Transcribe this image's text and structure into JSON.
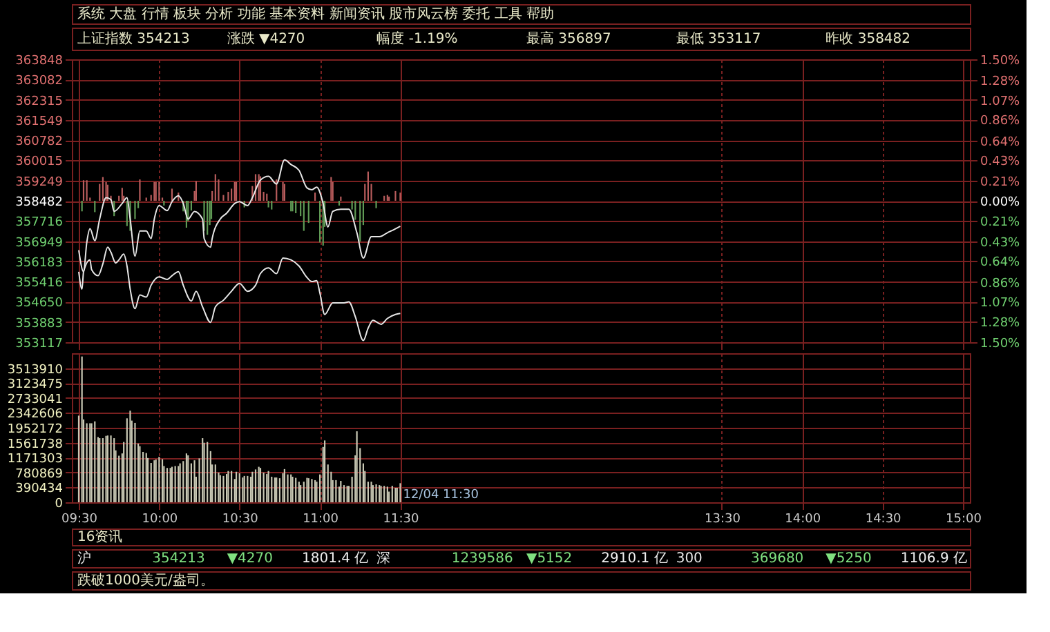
{
  "chart_data": [
    {
      "type": "line",
      "annotations": [
        "系统 大盘 行情 板块 分析 功能 基本资料 新闻资讯 股市风云榜 委托 工具 帮助",
        "上证指数 354213",
        "涨跌 ▼4270",
        "幅度 -1.19%",
        "最高 356897",
        "最低 353117",
        "昨收 358482"
      ],
      "series": [
        {
          "type": "line",
          "color": "#e6e6e6",
          "x": [
            9.5,
            9.53,
            9.55,
            9.57,
            9.6,
            9.63,
            9.67,
            9.7,
            9.72,
            9.77,
            9.8,
            9.82,
            9.85,
            9.88,
            9.92,
            9.95,
            9.97,
            10,
            10.05,
            10.08,
            10.12,
            10.15,
            10.18,
            10.22,
            10.27,
            10.28,
            10.32,
            10.33,
            10.38,
            10.42,
            10.47,
            10.5,
            10.55,
            10.58,
            10.63,
            10.68,
            10.73,
            10.78,
            10.82,
            10.87,
            10.92,
            10.95,
            10.98,
            11.02,
            11.05,
            11.08,
            11.13,
            11.18,
            11.23,
            11.27,
            11.32,
            11.37,
            11.42,
            11.47,
            11.5
          ],
          "values": [
            356610,
            355790,
            356900,
            357420,
            356970,
            357790,
            358600,
            358530,
            358080,
            358380,
            358600,
            357790,
            356380,
            357340,
            357340,
            357050,
            357790,
            358300,
            358110,
            358450,
            358670,
            358380,
            357790,
            358080,
            357790,
            357050,
            356720,
            357050,
            357790,
            358010,
            358380,
            358450,
            358300,
            358600,
            359270,
            359410,
            359120,
            360030,
            359860,
            359640,
            358970,
            358900,
            359000,
            358380,
            357490,
            358080,
            358160,
            358160,
            357270,
            356310,
            357120,
            357120,
            357270,
            357420,
            357520
          ]
        },
        {
          "type": "line",
          "color": "#e6e6e6",
          "x": [
            9.5,
            9.52,
            9.53,
            9.57,
            9.58,
            9.62,
            9.65,
            9.68,
            9.7,
            9.73,
            9.75,
            9.78,
            9.8,
            9.82,
            9.85,
            9.88,
            9.92,
            9.95,
            10,
            10.05,
            10.08,
            10.12,
            10.15,
            10.2,
            10.23,
            10.27,
            10.32,
            10.35,
            10.4,
            10.45,
            10.5,
            10.55,
            10.6,
            10.63,
            10.68,
            10.73,
            10.77,
            10.82,
            10.87,
            10.92,
            10.95,
            10.98,
            11,
            11.03,
            11.08,
            11.15,
            11.18,
            11.22,
            11.27,
            11.3,
            11.33,
            11.38,
            11.42,
            11.47,
            11.5
          ],
          "values": [
            355790,
            355130,
            355790,
            356240,
            355870,
            355640,
            356090,
            356720,
            356530,
            356120,
            356240,
            356460,
            356010,
            355130,
            354390,
            354910,
            354830,
            355280,
            355600,
            355500,
            355640,
            355790,
            355280,
            354680,
            355050,
            354460,
            353870,
            354460,
            354710,
            355050,
            355350,
            355050,
            355280,
            355720,
            355940,
            355720,
            356310,
            356240,
            356010,
            355570,
            355420,
            355450,
            354980,
            354170,
            354610,
            354610,
            354650,
            354090,
            353180,
            353650,
            353950,
            353800,
            354020,
            354170,
            354210
          ]
        },
        {
          "type": "bar",
          "color": "#b85c5c",
          "x": [
            9.53,
            9.55,
            9.57,
            9.63,
            9.65,
            9.67,
            9.68,
            9.7,
            9.75,
            9.77,
            9.78,
            9.88,
            9.92,
            9.95,
            9.97,
            9.98,
            10,
            10.02,
            10.08,
            10.12,
            10.22,
            10.23,
            10.33,
            10.35,
            10.37,
            10.4,
            10.43,
            10.45,
            10.47,
            10.48,
            10.58,
            10.6,
            10.62,
            10.63,
            10.65,
            10.67,
            10.73,
            10.77,
            10.78,
            10.97,
            11.07,
            11.08,
            11.13,
            11.28,
            11.3,
            11.32,
            11.4,
            11.42,
            11.43,
            11.47,
            11.5
          ],
          "base": [
            358482,
            358482,
            358482,
            358482,
            358482,
            358482,
            358482,
            358482,
            358482,
            358482,
            358482,
            358482,
            358482,
            358482,
            358482,
            358482,
            358482,
            358482,
            358482,
            358482,
            358482,
            358482,
            358482,
            358482,
            358482,
            358482,
            358482,
            358482,
            358482,
            358482,
            358482,
            358482,
            358482,
            358482,
            358482,
            358482,
            358482,
            358482,
            358482,
            358482,
            358482,
            358482,
            358482,
            358482,
            358482,
            358482,
            358482,
            358482,
            358482,
            358482,
            358482
          ],
          "values": [
            780,
            780,
            120,
            640,
            900,
            710,
            610,
            190,
            190,
            490,
            190,
            810,
            120,
            220,
            710,
            710,
            710,
            120,
            460,
            310,
            370,
            750,
            370,
            1010,
            810,
            220,
            340,
            460,
            710,
            710,
            560,
            1010,
            1010,
            930,
            340,
            270,
            810,
            710,
            640,
            310,
            900,
            710,
            160,
            640,
            1110,
            640,
            190,
            220,
            160,
            370,
            310
          ]
        },
        {
          "type": "bar",
          "color": "#5f9a55",
          "x": [
            9.52,
            9.6,
            9.72,
            9.8,
            9.82,
            9.85,
            9.87,
            10.03,
            10.15,
            10.17,
            10.18,
            10.2,
            10.28,
            10.3,
            10.315,
            10.325,
            10.53,
            10.68,
            10.7,
            10.82,
            10.83,
            10.85,
            10.88,
            10.9,
            10.93,
            11,
            11.02,
            11.03,
            11.12,
            11.2,
            11.22,
            11.25,
            11.27,
            11.35
          ],
          "base": [
            358482,
            358482,
            358482,
            358482,
            358482,
            358482,
            358482,
            358482,
            358482,
            358482,
            358482,
            358482,
            358482,
            358482,
            358482,
            358482,
            358482,
            358482,
            358482,
            358482,
            358482,
            358482,
            358482,
            358482,
            358482,
            358482,
            358482,
            358482,
            358482,
            358482,
            358482,
            358482,
            358482,
            358482
          ],
          "values": [
            -400,
            -430,
            -580,
            -960,
            -1140,
            -690,
            -280,
            -180,
            -400,
            -1020,
            -770,
            -370,
            -1140,
            -1290,
            -920,
            -690,
            -250,
            -250,
            -330,
            -400,
            -400,
            -470,
            -580,
            -1140,
            -840,
            -1580,
            -1700,
            -990,
            -180,
            -330,
            -720,
            -1550,
            -920,
            -280
          ]
        }
      ],
      "xlim": [
        9.5,
        15
      ],
      "xticks": [
        {
          "value": 9.5,
          "label": null
        },
        {
          "value": 10,
          "label": null
        },
        {
          "value": 10.5,
          "label": null
        },
        {
          "value": 11,
          "label": null
        },
        {
          "value": 11.5,
          "label": null
        },
        {
          "value": 13.5,
          "label": null
        },
        {
          "value": 14,
          "label": null
        },
        {
          "value": 14.5,
          "label": null
        },
        {
          "value": 15,
          "label": null
        }
      ],
      "ylim": [
        353117,
        363848
      ],
      "yticks": [
        363848,
        363082,
        362315,
        361549,
        360782,
        360015,
        359249,
        358482,
        357716,
        356949,
        356183,
        355416,
        354650,
        353883,
        353117
      ],
      "y2lim": [
        -1.5,
        1.5
      ],
      "y2ticks": [
        {
          "value": -1.5,
          "label": "1.50%"
        },
        {
          "value": -1.28,
          "label": "1.28%"
        },
        {
          "value": -1.07,
          "label": "1.07%"
        },
        {
          "value": -0.86,
          "label": "0.86%"
        },
        {
          "value": -0.64,
          "label": "0.64%"
        },
        {
          "value": -0.43,
          "label": "0.43%"
        },
        {
          "value": -0.21,
          "label": "0.21%"
        },
        {
          "value": 0,
          "label": "0.00%"
        },
        {
          "value": 0.21,
          "label": "0.21%"
        },
        {
          "value": 0.43,
          "label": "0.43%"
        },
        {
          "value": 0.64,
          "label": "0.64%"
        },
        {
          "value": 0.86,
          "label": "0.86%"
        },
        {
          "value": 1.07,
          "label": "1.07%"
        },
        {
          "value": 1.28,
          "label": "1.28%"
        },
        {
          "value": 1.5,
          "label": "1.50%"
        }
      ],
      "grid": true,
      "tick_labels": "y"
    },
    {
      "type": "bar",
      "color": "#c8c8b4",
      "x": [
        9.5,
        9.52,
        9.53,
        9.55,
        9.57,
        9.58,
        9.6,
        9.62,
        9.63,
        9.65,
        9.67,
        9.68,
        9.7,
        9.72,
        9.73,
        9.75,
        9.77,
        9.78,
        9.8,
        9.82,
        9.83,
        9.85,
        9.87,
        9.88,
        9.9,
        9.92,
        9.93,
        9.95,
        9.97,
        9.98,
        10,
        10.02,
        10.03,
        10.05,
        10.07,
        10.08,
        10.1,
        10.12,
        10.13,
        10.15,
        10.17,
        10.18,
        10.2,
        10.22,
        10.23,
        10.25,
        10.27,
        10.28,
        10.3,
        10.32,
        10.33,
        10.35,
        10.37,
        10.38,
        10.4,
        10.42,
        10.43,
        10.45,
        10.47,
        10.48,
        10.5,
        10.52,
        10.53,
        10.55,
        10.57,
        10.58,
        10.6,
        10.62,
        10.63,
        10.65,
        10.67,
        10.68,
        10.7,
        10.72,
        10.73,
        10.75,
        10.77,
        10.78,
        10.8,
        10.82,
        10.83,
        10.85,
        10.87,
        10.88,
        10.9,
        10.92,
        10.93,
        10.95,
        10.97,
        10.98,
        11,
        11.02,
        11.03,
        11.05,
        11.07,
        11.08,
        11.1,
        11.12,
        11.13,
        11.15,
        11.17,
        11.18,
        11.2,
        11.22,
        11.23,
        11.25,
        11.27,
        11.28,
        11.3,
        11.32,
        11.33,
        11.35,
        11.37,
        11.38,
        11.4,
        11.42,
        11.43,
        11.45,
        11.47,
        11.48,
        11.5
      ],
      "values": [
        2270000,
        3820000,
        2170000,
        2070000,
        2070000,
        2070000,
        2120000,
        1710000,
        1680000,
        1680000,
        1740000,
        1750000,
        1750000,
        1680000,
        1360000,
        1220000,
        1280000,
        1580000,
        2200000,
        2400000,
        2140000,
        2080000,
        1540000,
        1470000,
        1320000,
        1290000,
        1160000,
        1030000,
        1100000,
        1120000,
        1190000,
        1130000,
        950000,
        900000,
        900000,
        930000,
        950000,
        950000,
        1020000,
        1080000,
        1280000,
        1230000,
        1020000,
        1100000,
        670000,
        1150000,
        1680000,
        1560000,
        1580000,
        1340000,
        990000,
        990000,
        780000,
        710000,
        690000,
        740000,
        820000,
        820000,
        610000,
        800000,
        760000,
        650000,
        690000,
        690000,
        670000,
        800000,
        860000,
        930000,
        900000,
        780000,
        740000,
        820000,
        670000,
        650000,
        650000,
        630000,
        760000,
        870000,
        730000,
        730000,
        670000,
        640000,
        540000,
        450000,
        540000,
        640000,
        630000,
        610000,
        580000,
        540000,
        730000,
        1450000,
        1620000,
        990000,
        800000,
        580000,
        580000,
        410000,
        560000,
        450000,
        430000,
        430000,
        670000,
        1230000,
        1860000,
        1420000,
        1020000,
        820000,
        540000,
        540000,
        450000,
        470000,
        450000,
        430000,
        430000,
        410000,
        280000,
        430000,
        380000,
        380000,
        500000
      ],
      "xlim": [
        9.5,
        15
      ],
      "xticks": [
        {
          "value": 9.5,
          "label": "09:30"
        },
        {
          "value": 10,
          "label": "10:00"
        },
        {
          "value": 10.5,
          "label": "10:30"
        },
        {
          "value": 11,
          "label": "11:00"
        },
        {
          "value": 11.5,
          "label": "11:30"
        },
        {
          "value": 13.5,
          "label": "13:30"
        },
        {
          "value": 14,
          "label": "14:00"
        },
        {
          "value": 14.5,
          "label": "14:30"
        },
        {
          "value": 15,
          "label": "15:00"
        }
      ],
      "ylim": [
        0,
        3904345
      ],
      "yticks": [
        0,
        390434,
        780869,
        1171303,
        1561738,
        1952172,
        2342606,
        2733041,
        3123475,
        3513910
      ],
      "grid": true,
      "annotations": [
        {
          "text": "12/04 11:30",
          "x": 11.5,
          "y": 0
        },
        "16资讯",
        "沪",
        "354213",
        "▼4270",
        "1801.4 亿",
        "深",
        "1239586",
        "▼5152",
        "2910.1 亿",
        "300",
        "369680",
        "▼5250",
        "1106.9 亿",
        "跌破1000美元/盎司。"
      ]
    }
  ]
}
